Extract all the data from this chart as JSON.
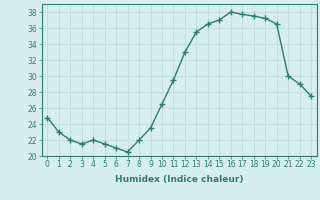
{
  "x": [
    0,
    1,
    2,
    3,
    4,
    5,
    6,
    7,
    8,
    9,
    10,
    11,
    12,
    13,
    14,
    15,
    16,
    17,
    18,
    19,
    20,
    21,
    22,
    23
  ],
  "y": [
    24.8,
    23.0,
    22.0,
    21.5,
    22.0,
    21.5,
    21.0,
    20.5,
    22.0,
    23.5,
    26.5,
    29.5,
    33.0,
    35.5,
    36.5,
    37.0,
    38.0,
    37.7,
    37.5,
    37.2,
    36.5,
    30.0,
    29.0,
    27.5
  ],
  "line_color": "#2e7d6e",
  "marker": "+",
  "marker_size": 4,
  "marker_lw": 1.0,
  "line_width": 1.0,
  "bg_color": "#d6eeee",
  "grid_color": "#b8d8d8",
  "xlabel": "Humidex (Indice chaleur)",
  "ylim": [
    20,
    39
  ],
  "xlim": [
    -0.5,
    23.5
  ],
  "yticks": [
    20,
    22,
    24,
    26,
    28,
    30,
    32,
    34,
    36,
    38
  ],
  "xticks": [
    0,
    1,
    2,
    3,
    4,
    5,
    6,
    7,
    8,
    9,
    10,
    11,
    12,
    13,
    14,
    15,
    16,
    17,
    18,
    19,
    20,
    21,
    22,
    23
  ],
  "tick_fontsize": 5.5,
  "label_fontsize": 6.5
}
